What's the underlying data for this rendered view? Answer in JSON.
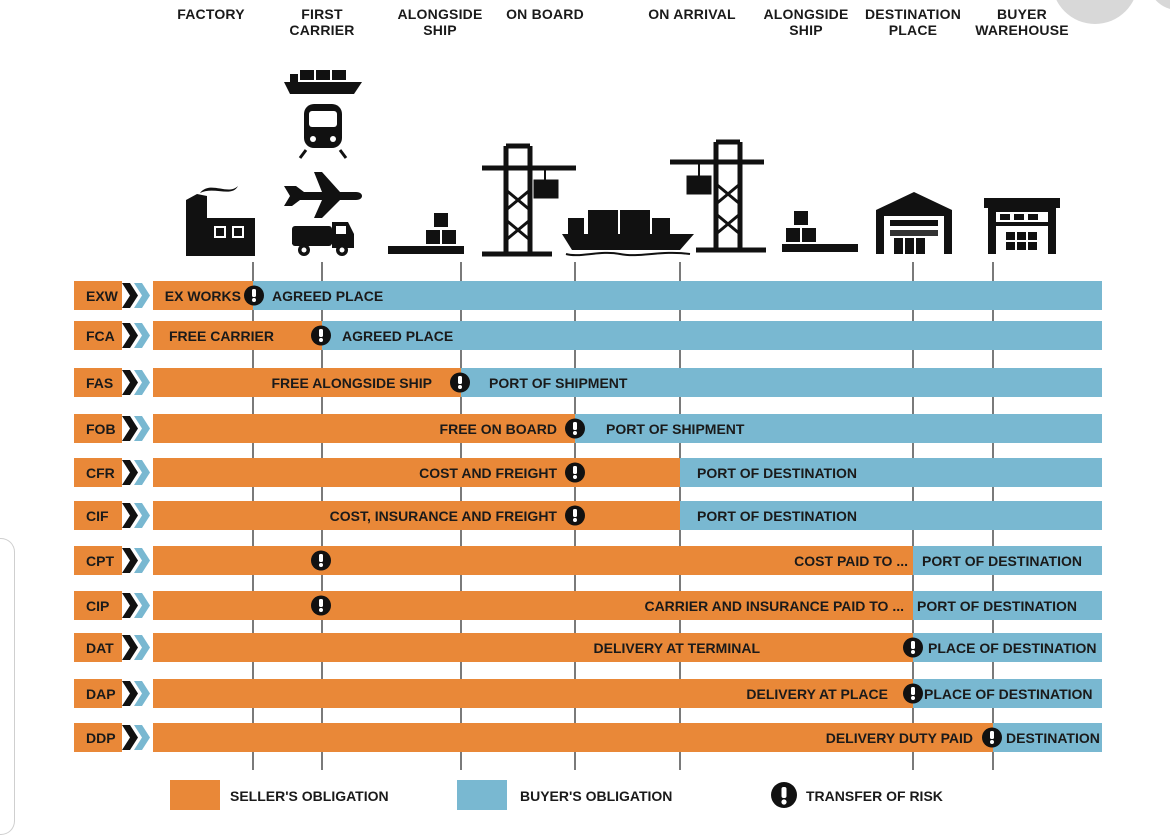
{
  "colors": {
    "seller": "#e98838",
    "buyer": "#79b8d1",
    "code_tab": "#e98838",
    "arrow": "#79b8d1",
    "ink": "#111111"
  },
  "columns": [
    {
      "label": "FACTORY"
    },
    {
      "label": "FIRST\nCARRIER"
    },
    {
      "label": "ALONGSIDE\nSHIP"
    },
    {
      "label": "ON BOARD"
    },
    {
      "label": "ON ARRIVAL"
    },
    {
      "label": "ALONGSIDE\nSHIP"
    },
    {
      "label": "DESTINATION\nPLACE"
    },
    {
      "label": "BUYER\nWAREHOUSE"
    }
  ],
  "icons": [
    "factory-icon",
    "cargo-ship-icon",
    "train-icon",
    "airplane-icon",
    "truck-icon",
    "dock-cargo-icon",
    "crane-icon",
    "container-ship-icon",
    "crane-icon",
    "dock-cargo-icon",
    "warehouse-icon",
    "warehouse-icon"
  ],
  "terms": [
    {
      "code": "EXW",
      "seller_label": "EX WORKS",
      "buyer_label": "AGREED PLACE",
      "risk": true
    },
    {
      "code": "FCA",
      "seller_label": "FREE CARRIER",
      "buyer_label": "AGREED PLACE",
      "risk": true
    },
    {
      "code": "FAS",
      "seller_label": "FREE ALONGSIDE SHIP",
      "buyer_label": "PORT OF SHIPMENT",
      "risk": true
    },
    {
      "code": "FOB",
      "seller_label": "FREE ON BOARD",
      "buyer_label": "PORT OF SHIPMENT",
      "risk": true
    },
    {
      "code": "CFR",
      "seller_label": "COST AND FREIGHT",
      "buyer_label": "PORT OF DESTINATION",
      "risk": true
    },
    {
      "code": "CIF",
      "seller_label": "COST, INSURANCE AND FREIGHT",
      "buyer_label": "PORT OF DESTINATION",
      "risk": true
    },
    {
      "code": "CPT",
      "seller_label": "COST PAID TO ...",
      "buyer_label": "PORT OF DESTINATION",
      "risk": true
    },
    {
      "code": "CIP",
      "seller_label": "CARRIER AND INSURANCE PAID TO ...",
      "buyer_label": "PORT OF DESTINATION",
      "risk": true
    },
    {
      "code": "DAT",
      "seller_label": "DELIVERY AT TERMINAL",
      "buyer_label": "PLACE OF DESTINATION",
      "risk": true
    },
    {
      "code": "DAP",
      "seller_label": "DELIVERY AT PLACE",
      "buyer_label": "PLACE OF DESTINATION",
      "risk": true
    },
    {
      "code": "DDP",
      "seller_label": "DELIVERY DUTY PAID",
      "buyer_label": "DESTINATION",
      "risk": true
    }
  ],
  "legend": {
    "seller": "SELLER'S OBLIGATION",
    "buyer": "BUYER'S OBLIGATION",
    "risk": "TRANSFER OF RISK"
  }
}
